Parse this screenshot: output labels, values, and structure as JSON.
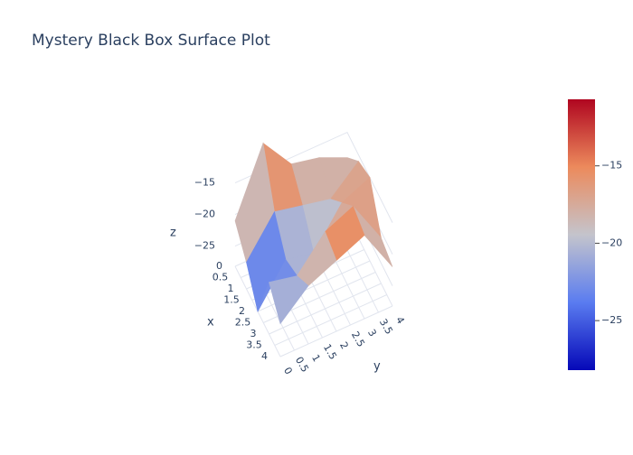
{
  "chart_data": {
    "type": "surface",
    "title": "Mystery Black Box Surface Plot",
    "x_label": "x",
    "y_label": "y",
    "z_label": "z",
    "x": [
      0,
      1,
      2,
      3,
      4
    ],
    "y": [
      0,
      1,
      2,
      3,
      4
    ],
    "z": [
      [
        -21,
        -10.7,
        -16,
        -17,
        -19
      ],
      [
        -24,
        -18,
        -19,
        -20,
        -16
      ],
      [
        -28.2,
        -22,
        -23,
        -17,
        -15
      ],
      [
        -20,
        -21,
        -16,
        -14,
        -21
      ],
      [
        -23,
        -19,
        -17,
        -15,
        -22
      ]
    ],
    "xlim": [
      0,
      4
    ],
    "ylim": [
      0,
      4
    ],
    "zlim": [
      -28.2,
      -10.7
    ],
    "xticks": [
      0,
      0.5,
      1,
      1.5,
      2,
      2.5,
      3,
      3.5,
      4
    ],
    "yticks": [
      0,
      0.5,
      1,
      1.5,
      2,
      2.5,
      3,
      3.5,
      4
    ],
    "zticks": [
      {
        "value": -25,
        "label": "−25"
      },
      {
        "value": -20,
        "label": "−20"
      },
      {
        "value": -15,
        "label": "−15"
      }
    ],
    "colorscale": [
      "#0508b8",
      "#5a7cf0",
      "#c4c4cc",
      "#ec8a5c",
      "#b00620"
    ],
    "grid": true,
    "colorbar": true
  }
}
